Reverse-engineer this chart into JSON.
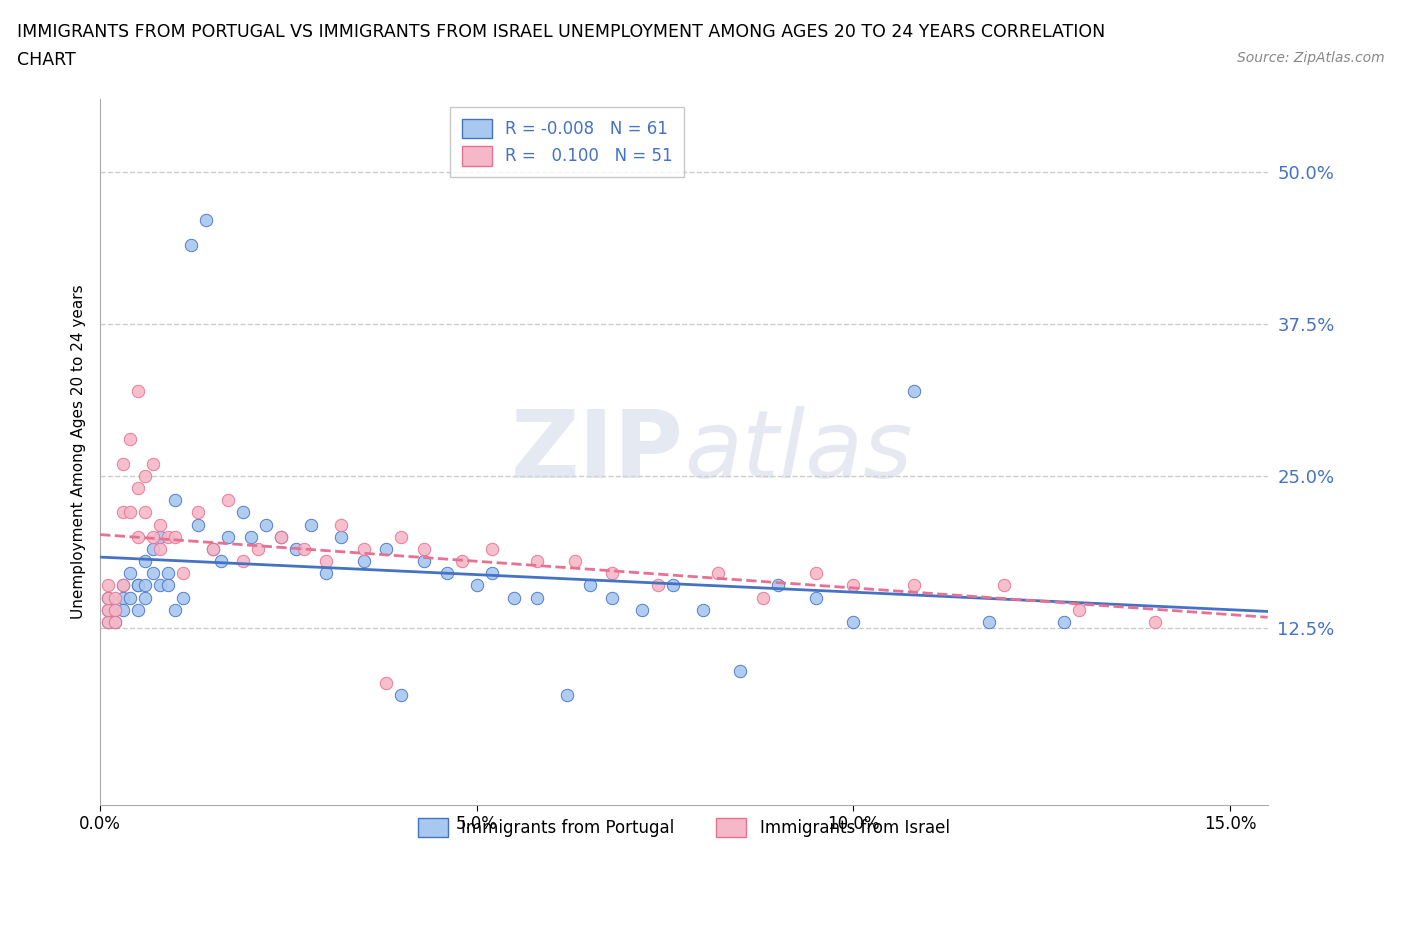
{
  "title_line1": "IMMIGRANTS FROM PORTUGAL VS IMMIGRANTS FROM ISRAEL UNEMPLOYMENT AMONG AGES 20 TO 24 YEARS CORRELATION",
  "title_line2": "CHART",
  "source": "Source: ZipAtlas.com",
  "ylabel": "Unemployment Among Ages 20 to 24 years",
  "xlim": [
    0.0,
    0.155
  ],
  "ylim": [
    -0.02,
    0.56
  ],
  "xticks": [
    0.0,
    0.05,
    0.1,
    0.15
  ],
  "xticklabels": [
    "0.0%",
    "5.0%",
    "10.0%",
    "15.0%"
  ],
  "yticks": [
    0.125,
    0.25,
    0.375,
    0.5
  ],
  "yticklabels": [
    "12.5%",
    "25.0%",
    "37.5%",
    "50.0%"
  ],
  "grid_color": "#cccccc",
  "background_color": "#ffffff",
  "watermark_zip": "ZIP",
  "watermark_atlas": "atlas",
  "legend_R1": "-0.008",
  "legend_N1": "61",
  "legend_R2": "0.100",
  "legend_N2": "51",
  "color_portugal": "#a8c8f0",
  "color_israel": "#f5b8c8",
  "trendline_portugal_color": "#4472c4",
  "trendline_israel_color": "#e87090",
  "portugal_x": [
    0.001,
    0.001,
    0.001,
    0.002,
    0.002,
    0.003,
    0.003,
    0.003,
    0.004,
    0.004,
    0.005,
    0.005,
    0.005,
    0.006,
    0.006,
    0.006,
    0.007,
    0.007,
    0.008,
    0.008,
    0.009,
    0.009,
    0.01,
    0.01,
    0.011,
    0.012,
    0.013,
    0.014,
    0.015,
    0.016,
    0.017,
    0.019,
    0.02,
    0.022,
    0.024,
    0.026,
    0.028,
    0.03,
    0.032,
    0.035,
    0.038,
    0.04,
    0.043,
    0.046,
    0.05,
    0.052,
    0.055,
    0.058,
    0.062,
    0.065,
    0.068,
    0.072,
    0.076,
    0.08,
    0.085,
    0.09,
    0.095,
    0.1,
    0.108,
    0.118,
    0.128
  ],
  "portugal_y": [
    0.13,
    0.14,
    0.15,
    0.13,
    0.14,
    0.15,
    0.14,
    0.16,
    0.15,
    0.17,
    0.16,
    0.14,
    0.16,
    0.15,
    0.18,
    0.16,
    0.17,
    0.19,
    0.16,
    0.2,
    0.17,
    0.16,
    0.14,
    0.23,
    0.15,
    0.44,
    0.21,
    0.46,
    0.19,
    0.18,
    0.2,
    0.22,
    0.2,
    0.21,
    0.2,
    0.19,
    0.21,
    0.17,
    0.2,
    0.18,
    0.19,
    0.07,
    0.18,
    0.17,
    0.16,
    0.17,
    0.15,
    0.15,
    0.07,
    0.16,
    0.15,
    0.14,
    0.16,
    0.14,
    0.09,
    0.16,
    0.15,
    0.13,
    0.32,
    0.13,
    0.13
  ],
  "israel_x": [
    0.001,
    0.001,
    0.001,
    0.001,
    0.002,
    0.002,
    0.002,
    0.003,
    0.003,
    0.003,
    0.004,
    0.004,
    0.005,
    0.005,
    0.005,
    0.006,
    0.006,
    0.007,
    0.007,
    0.008,
    0.008,
    0.009,
    0.01,
    0.011,
    0.013,
    0.015,
    0.017,
    0.019,
    0.021,
    0.024,
    0.027,
    0.03,
    0.032,
    0.035,
    0.038,
    0.04,
    0.043,
    0.048,
    0.052,
    0.058,
    0.063,
    0.068,
    0.074,
    0.082,
    0.088,
    0.095,
    0.1,
    0.108,
    0.12,
    0.13,
    0.14
  ],
  "israel_y": [
    0.13,
    0.14,
    0.15,
    0.16,
    0.15,
    0.14,
    0.13,
    0.22,
    0.26,
    0.16,
    0.28,
    0.22,
    0.2,
    0.32,
    0.24,
    0.25,
    0.22,
    0.2,
    0.26,
    0.19,
    0.21,
    0.2,
    0.2,
    0.17,
    0.22,
    0.19,
    0.23,
    0.18,
    0.19,
    0.2,
    0.19,
    0.18,
    0.21,
    0.19,
    0.08,
    0.2,
    0.19,
    0.18,
    0.19,
    0.18,
    0.18,
    0.17,
    0.16,
    0.17,
    0.15,
    0.17,
    0.16,
    0.16,
    0.16,
    0.14,
    0.13
  ]
}
